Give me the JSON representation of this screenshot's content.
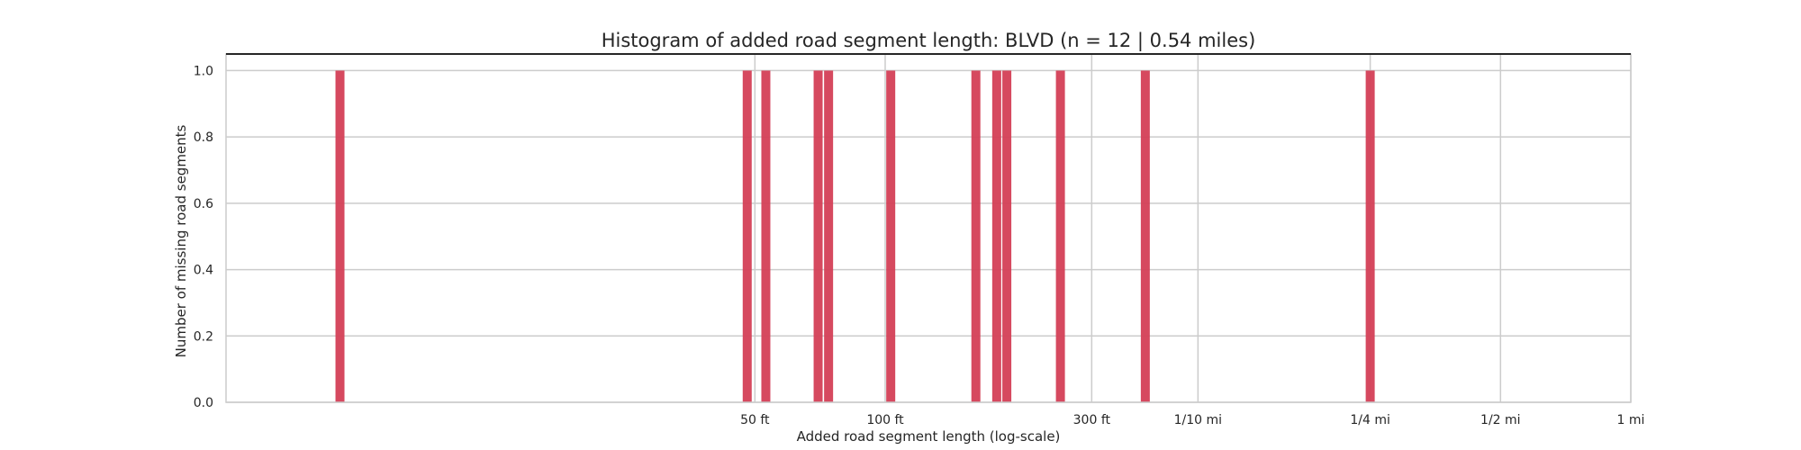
{
  "chart_data": {
    "type": "bar",
    "title": "Histogram of added road segment length: BLVD (n = 12 | 0.54 miles)",
    "xlabel": "Added road segment  length (log-scale)",
    "ylabel": "Number of missing road segments",
    "x_scale": "log",
    "x_unit": "feet",
    "xlim": [
      3,
      5280
    ],
    "ylim": [
      0,
      1.05
    ],
    "grid": true,
    "bar_color": "#d43f56",
    "x_ticks": [
      {
        "value": 50,
        "label": "50 ft"
      },
      {
        "value": 100,
        "label": "100 ft"
      },
      {
        "value": 300,
        "label": "300 ft"
      },
      {
        "value": 528,
        "label": "1/10 mi"
      },
      {
        "value": 1320,
        "label": "1/4 mi"
      },
      {
        "value": 2640,
        "label": "1/2 mi"
      },
      {
        "value": 5280,
        "label": "1 mi"
      }
    ],
    "y_ticks": [
      {
        "value": 0,
        "label": "0.0"
      },
      {
        "value": 0.2,
        "label": "0.2"
      },
      {
        "value": 0.4,
        "label": "0.4"
      },
      {
        "value": 0.6,
        "label": "0.6"
      },
      {
        "value": 0.8,
        "label": "0.8"
      },
      {
        "value": 1.0,
        "label": "1.0"
      }
    ],
    "bars": [
      {
        "x": 5.5,
        "count": 1
      },
      {
        "x": 48,
        "count": 1
      },
      {
        "x": 53,
        "count": 1
      },
      {
        "x": 70,
        "count": 1
      },
      {
        "x": 74,
        "count": 1
      },
      {
        "x": 103,
        "count": 1
      },
      {
        "x": 162,
        "count": 1
      },
      {
        "x": 181,
        "count": 1
      },
      {
        "x": 191,
        "count": 1
      },
      {
        "x": 254,
        "count": 1
      },
      {
        "x": 399,
        "count": 1
      },
      {
        "x": 1320,
        "count": 1
      }
    ]
  }
}
